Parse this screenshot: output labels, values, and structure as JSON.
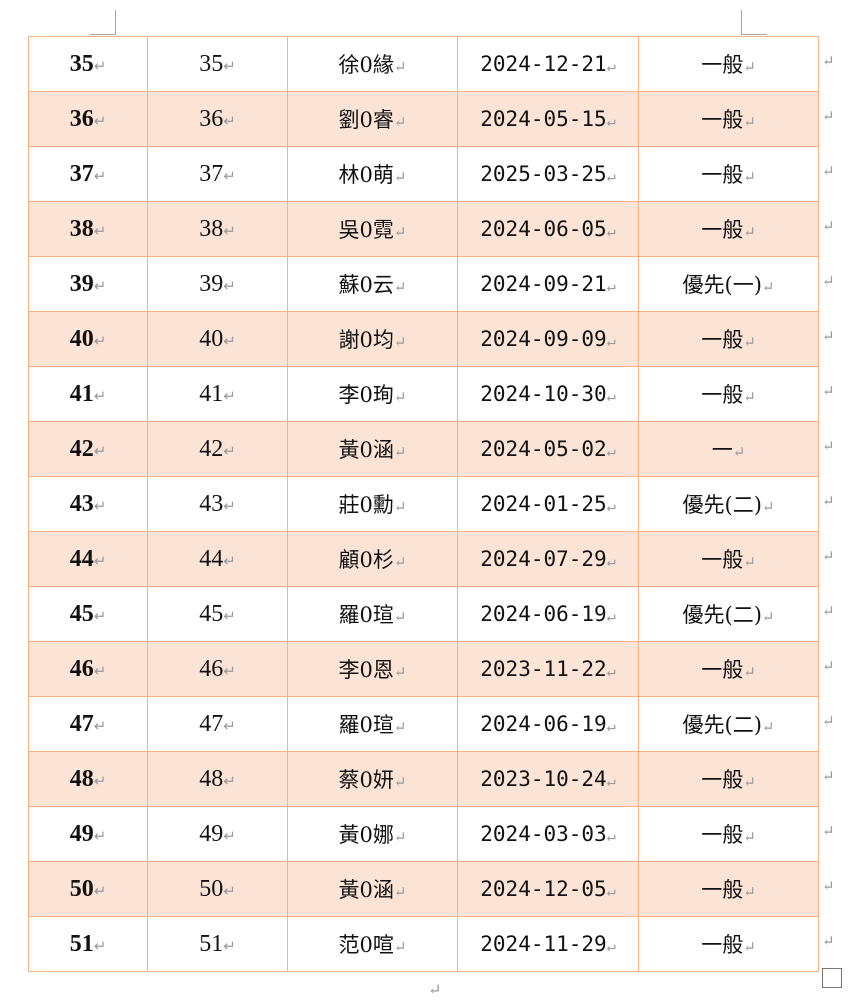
{
  "paragraph_mark": "↵",
  "colors": {
    "border": "#f4b183",
    "row_shade": "#fbe4d5"
  },
  "rows": [
    {
      "no": "35",
      "id": "35",
      "name": "徐0緣",
      "date": "2024-12-21",
      "type": "一般"
    },
    {
      "no": "36",
      "id": "36",
      "name": "劉0睿",
      "date": "2024-05-15",
      "type": "一般"
    },
    {
      "no": "37",
      "id": "37",
      "name": "林0萌",
      "date": "2025-03-25",
      "type": "一般"
    },
    {
      "no": "38",
      "id": "38",
      "name": "吳0霓",
      "date": "2024-06-05",
      "type": "一般"
    },
    {
      "no": "39",
      "id": "39",
      "name": "蘇0云",
      "date": "2024-09-21",
      "type": "優先(一)"
    },
    {
      "no": "40",
      "id": "40",
      "name": "謝0均",
      "date": "2024-09-09",
      "type": "一般"
    },
    {
      "no": "41",
      "id": "41",
      "name": "李0珣",
      "date": "2024-10-30",
      "type": "一般"
    },
    {
      "no": "42",
      "id": "42",
      "name": "黃0涵",
      "date": "2024-05-02",
      "type": "一"
    },
    {
      "no": "43",
      "id": "43",
      "name": "莊0勳",
      "date": "2024-01-25",
      "type": "優先(二)"
    },
    {
      "no": "44",
      "id": "44",
      "name": "顧0杉",
      "date": "2024-07-29",
      "type": "一般"
    },
    {
      "no": "45",
      "id": "45",
      "name": "羅0瑄",
      "date": "2024-06-19",
      "type": "優先(二)"
    },
    {
      "no": "46",
      "id": "46",
      "name": "李0恩",
      "date": "2023-11-22",
      "type": "一般"
    },
    {
      "no": "47",
      "id": "47",
      "name": "羅0瑄",
      "date": "2024-06-19",
      "type": "優先(二)"
    },
    {
      "no": "48",
      "id": "48",
      "name": "蔡0妍",
      "date": "2023-10-24",
      "type": "一般"
    },
    {
      "no": "49",
      "id": "49",
      "name": "黃0娜",
      "date": "2024-03-03",
      "type": "一般"
    },
    {
      "no": "50",
      "id": "50",
      "name": "黃0涵",
      "date": "2024-12-05",
      "type": "一般"
    },
    {
      "no": "51",
      "id": "51",
      "name": "范0喧",
      "date": "2024-11-29",
      "type": "一般"
    }
  ]
}
